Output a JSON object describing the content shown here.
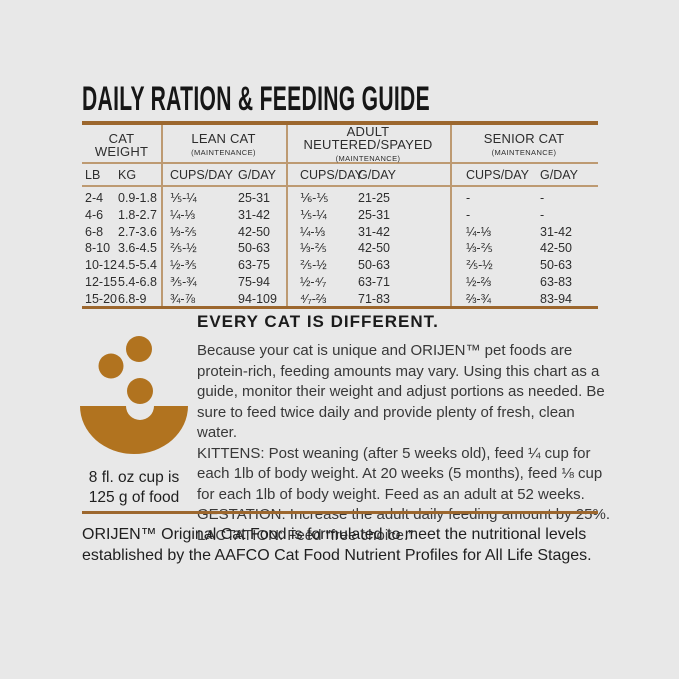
{
  "title": "DAILY RATION & FEEDING GUIDE",
  "colors": {
    "background": "#e8e8e8",
    "border_brown": "#9c672e",
    "line_tan": "#bd9a72",
    "icon_brown": "#b1731f",
    "text_dark": "#1f1f1f"
  },
  "table": {
    "groups": [
      {
        "title": "CAT WEIGHT",
        "sub": ""
      },
      {
        "title": "LEAN CAT",
        "sub": "(MAINTENANCE)"
      },
      {
        "title": "ADULT NEUTERED/SPAYED",
        "sub": "(MAINTENANCE)"
      },
      {
        "title": "SENIOR CAT",
        "sub": "(MAINTENANCE)"
      }
    ],
    "col_headers": [
      "LB",
      "KG",
      "CUPS/DAY",
      "G/DAY",
      "CUPS/DAY",
      "G/DAY",
      "CUPS/DAY",
      "G/DAY"
    ],
    "rows": [
      [
        "2-4",
        "0.9-1.8",
        "⅕-¼",
        "25-31",
        "⅙-⅕",
        "21-25",
        "-",
        "-"
      ],
      [
        "4-6",
        "1.8-2.7",
        "¼-⅓",
        "31-42",
        "⅕-¼",
        "25-31",
        "-",
        "-"
      ],
      [
        "6-8",
        "2.7-3.6",
        "⅓-⅖",
        "42-50",
        "¼-⅓",
        "31-42",
        "¼-⅓",
        "31-42"
      ],
      [
        "8-10",
        "3.6-4.5",
        "⅖-½",
        "50-63",
        "⅓-⅖",
        "42-50",
        "⅓-⅖",
        "42-50"
      ],
      [
        "10-12",
        "4.5-5.4",
        "½-⅗",
        "63-75",
        "⅖-½",
        "50-63",
        "⅖-½",
        "50-63"
      ],
      [
        "12-15",
        "5.4-6.8",
        "⅗-¾",
        "75-94",
        "½-⁴⁄₇",
        "63-71",
        "½-⅔",
        "63-83"
      ],
      [
        "15-20",
        "6.8-9",
        "¾-⅞",
        "94-109",
        "⁴⁄₇-⅔",
        "71-83",
        "⅔-¾",
        "83-94"
      ]
    ]
  },
  "icon": {
    "name": "bowl-of-kibble"
  },
  "cup_note": {
    "line1": "8 fl. oz cup is",
    "line2": "125 g of food"
  },
  "info": {
    "heading": "EVERY CAT IS DIFFERENT.",
    "paragraphs": [
      "Because your cat is unique and ORIJEN™ pet foods are protein-rich, feeding amounts may vary. Using this chart as a guide, monitor their weight and adjust portions as needed. Be sure to feed twice daily and provide plenty of fresh, clean water.",
      "KITTENS: Post weaning (after 5 weeks old), feed ¼ cup for each 1lb of body weight. At 20 weeks (5 months), feed ⅛ cup for each 1lb of body weight. Feed as an adult at 52 weeks.",
      "GESTATION: Increase the adult daily feeding amount by 25%.",
      "LACTATION: Feed “free choice.”"
    ]
  },
  "footer": "ORIJEN™ Original Cat Food is formulated to meet the nutritional levels established by the AAFCO Cat Food Nutrient Profiles for All Life Stages."
}
